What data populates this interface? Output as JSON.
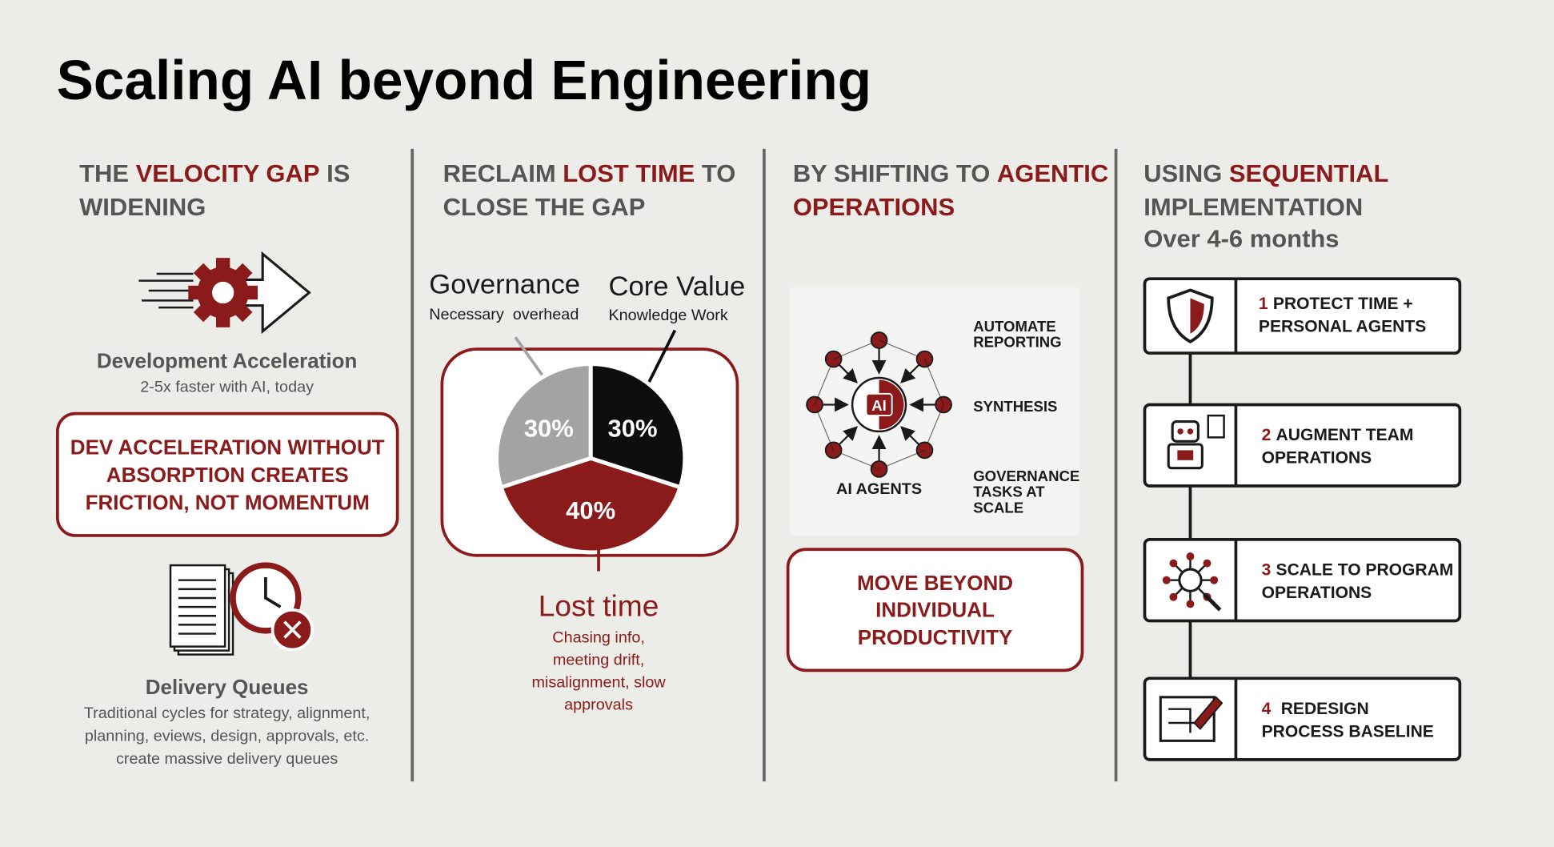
{
  "title": "Scaling AI beyond Engineering",
  "accent_color": "#8b1a1a",
  "columns": [
    {
      "heading": [
        [
          {
            "text": "THE "
          },
          {
            "text": "VELOCITY GAP",
            "accent": true
          },
          {
            "text": " IS"
          }
        ],
        [
          {
            "text": "WIDENING"
          }
        ]
      ],
      "items": [
        {
          "title": "Development Acceleration",
          "description": [
            "2-5x faster with AI, today"
          ]
        },
        {
          "title": "Delivery Queues",
          "description": [
            "Traditional cycles for strategy, alignment,",
            "planning, eviews, design, approvals, etc.",
            "create massive delivery queues"
          ]
        }
      ],
      "callout": [
        "DEV ACCELERATION WITHOUT",
        "ABSORPTION CREATES",
        "FRICTION, NOT MOMENTUM"
      ]
    },
    {
      "heading": [
        [
          {
            "text": "RECLAIM "
          },
          {
            "text": "LOST TIME",
            "accent": true
          },
          {
            "text": " TO"
          }
        ],
        [
          {
            "text": "CLOSE THE GAP"
          }
        ]
      ],
      "labels": [
        {
          "title": "Governance",
          "subtitle": "Necessary  overhead"
        },
        {
          "title": "Core Value",
          "subtitle": "Knowledge Work"
        },
        {
          "title": "Lost time",
          "description": [
            "Chasing info,",
            "meeting drift,",
            "misalignment, slow",
            "approvals"
          ]
        }
      ],
      "pie": {
        "values": [
          30,
          40,
          30
        ],
        "value_labels": [
          "30%",
          "40%",
          "30%"
        ],
        "colors": [
          "#0d0d0d",
          "#8b1a1a",
          "#a3a3a3"
        ]
      }
    },
    {
      "heading": [
        [
          {
            "text": "BY SHIFTING TO "
          },
          {
            "text": "AGENTIC",
            "accent": true
          }
        ],
        [
          {
            "text": "OPERATIONS",
            "accent": true
          }
        ]
      ],
      "diagram": {
        "center": "AI",
        "caption": "AI AGENTS",
        "outputs": [
          [
            "AUTOMATE",
            "REPORTING"
          ],
          [
            "SYNTHESIS"
          ],
          [
            "GOVERNANCE",
            "TASKS AT",
            "SCALE"
          ]
        ]
      },
      "callout": [
        "MOVE BEYOND",
        "INDIVIDUAL",
        "PRODUCTIVITY"
      ]
    },
    {
      "heading": [
        [
          {
            "text": "USING "
          },
          {
            "text": "SEQUENTIAL",
            "accent": true
          }
        ],
        [
          {
            "text": "IMPLEMENTATION"
          }
        ]
      ],
      "subheading": "Over 4-6 months",
      "steps": [
        {
          "number": "1",
          "lines": [
            "PROTECT TIME +",
            "PERSONAL AGENTS"
          ]
        },
        {
          "number": "2",
          "lines": [
            "AUGMENT TEAM",
            "OPERATIONS"
          ]
        },
        {
          "number": "3",
          "lines": [
            "SCALE TO PROGRAM",
            "OPERATIONS"
          ]
        },
        {
          "number": "4",
          "lines": [
            "REDESIGN",
            "PROCESS BASELINE"
          ]
        }
      ]
    }
  ]
}
